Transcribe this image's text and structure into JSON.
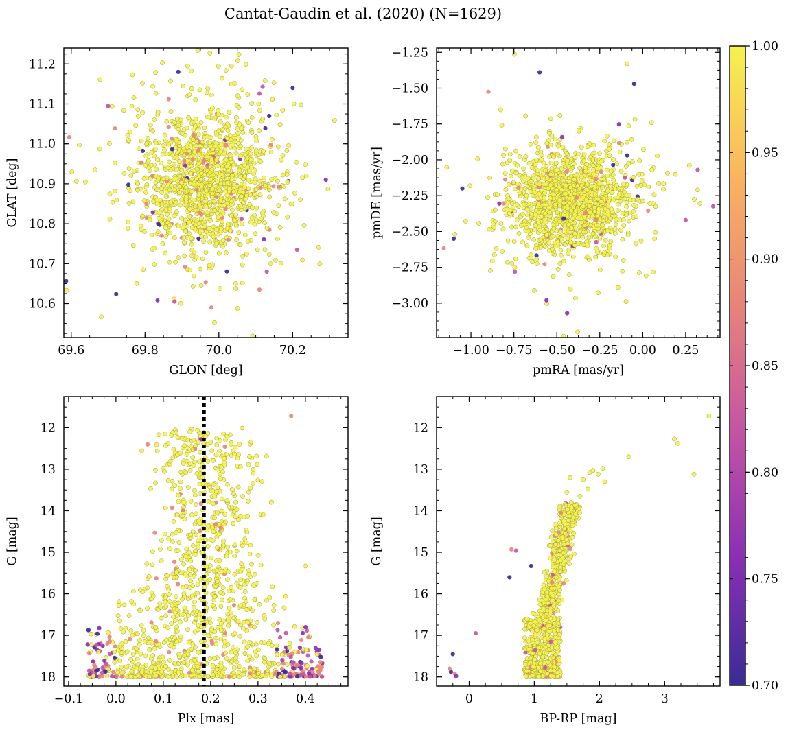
{
  "figure": {
    "title": "Cantat-Gaudin et al. (2020) (N=1629)"
  },
  "colorbar": {
    "colormap": "plasma",
    "range": [
      0.7,
      1.0
    ],
    "ticks": [
      "0.70",
      "0.75",
      "0.80",
      "0.85",
      "0.90",
      "0.95",
      "1.00"
    ],
    "colors": [
      "#3a2c94",
      "#8a2fb5",
      "#c455a4",
      "#e88578",
      "#fbb55f",
      "#f5f24e"
    ]
  },
  "chart_data": [
    {
      "type": "scatter",
      "id": "sky",
      "title": "",
      "xlabel": "GLON [deg]",
      "ylabel": "GLAT [deg]",
      "xlim": [
        69.58,
        70.35
      ],
      "ylim": [
        10.515,
        11.24
      ],
      "xticks": [
        69.6,
        69.8,
        70.0,
        70.2
      ],
      "xticklabels": [
        "69.6",
        "69.8",
        "70.0",
        "70.2"
      ],
      "yticks": [
        10.6,
        10.7,
        10.8,
        10.9,
        11.0,
        11.1,
        11.2
      ],
      "yticklabels": [
        "10.6",
        "10.7",
        "10.8",
        "10.9",
        "11.0",
        "11.1",
        "11.2"
      ],
      "center": [
        69.96,
        10.91
      ],
      "spread": [
        0.085,
        0.085
      ],
      "n_members": 1629,
      "outliers": [
        [
          69.7,
          11.095
        ],
        [
          69.88,
          10.605
        ],
        [
          70.11,
          10.635
        ],
        [
          70.13,
          10.68
        ],
        [
          70.29,
          10.91
        ],
        [
          69.98,
          10.59
        ],
        [
          70.2,
          11.14
        ],
        [
          69.89,
          11.18
        ]
      ]
    },
    {
      "type": "scatter",
      "id": "proper-motion",
      "title": "",
      "xlabel": "pmRA [mas/yr]",
      "ylabel": "pmDE [mas/yr]",
      "xlim": [
        -1.2,
        0.45
      ],
      "ylim": [
        -3.24,
        -1.22
      ],
      "xticks": [
        -1.0,
        -0.75,
        -0.5,
        -0.25,
        0.0,
        0.25
      ],
      "xticklabels": [
        "−1.00",
        "−0.75",
        "−0.50",
        "−0.25",
        "0.00",
        "0.25"
      ],
      "yticks": [
        -3.0,
        -2.75,
        -2.5,
        -2.25,
        -2.0,
        -1.75,
        -1.5,
        -1.25
      ],
      "yticklabels": [
        "−3.00",
        "−2.75",
        "−2.50",
        "−2.25",
        "−2.00",
        "−1.75",
        "−1.50",
        "−1.25"
      ],
      "center": [
        -0.42,
        -2.29
      ],
      "spread": [
        0.17,
        0.17
      ],
      "n_members": 1629,
      "outliers": [
        [
          -0.6,
          -1.39
        ],
        [
          -0.05,
          -1.47
        ],
        [
          0.32,
          -2.07
        ],
        [
          -1.05,
          -2.2
        ],
        [
          -1.1,
          -2.55
        ],
        [
          -0.44,
          -3.07
        ],
        [
          -0.56,
          -2.98
        ],
        [
          0.25,
          -2.42
        ]
      ]
    },
    {
      "type": "scatter",
      "id": "parallax-magnitude",
      "title": "",
      "xlabel": "Plx [mas]",
      "ylabel": "G [mag]",
      "xlim": [
        -0.11,
        0.49
      ],
      "ylim": [
        18.22,
        11.25
      ],
      "xticks": [
        -0.1,
        0.0,
        0.1,
        0.2,
        0.3,
        0.4
      ],
      "xticklabels": [
        "−0.1",
        "0.0",
        "0.1",
        "0.2",
        "0.3",
        "0.4"
      ],
      "yticks": [
        12,
        13,
        14,
        15,
        16,
        17,
        18
      ],
      "yticklabels": [
        "12",
        "13",
        "14",
        "15",
        "16",
        "17",
        "18"
      ],
      "reference_line": {
        "style": "dotted",
        "x": 0.186
      },
      "outliers": [
        [
          0.37,
          11.72
        ],
        [
          0.18,
          12.28
        ],
        [
          0.1,
          12.97
        ],
        [
          0.29,
          13.1
        ],
        [
          0.28,
          13.55
        ],
        [
          0.4,
          15.33
        ],
        [
          0.07,
          15.58
        ]
      ]
    },
    {
      "type": "scatter",
      "id": "color-magnitude",
      "title": "",
      "xlabel": "BP-RP [mag]",
      "ylabel": "G [mag]",
      "xlim": [
        -0.5,
        3.85
      ],
      "ylim": [
        18.22,
        11.25
      ],
      "xticks": [
        0,
        1,
        2,
        3
      ],
      "xticklabels": [
        "0",
        "1",
        "2",
        "3"
      ],
      "yticks": [
        12,
        13,
        14,
        15,
        16,
        17,
        18
      ],
      "yticklabels": [
        "12",
        "13",
        "14",
        "15",
        "16",
        "17",
        "18"
      ],
      "giant_branch": [
        [
          3.68,
          11.72
        ],
        [
          3.15,
          12.27
        ],
        [
          3.2,
          12.38
        ],
        [
          2.45,
          12.7
        ],
        [
          3.45,
          13.12
        ],
        [
          2.05,
          12.98
        ],
        [
          1.9,
          13.03
        ],
        [
          1.85,
          13.08
        ],
        [
          1.98,
          13.12
        ],
        [
          2.08,
          13.3
        ],
        [
          1.75,
          13.25
        ],
        [
          1.82,
          13.48
        ],
        [
          1.55,
          13.2
        ],
        [
          1.7,
          13.65
        ],
        [
          1.5,
          13.55
        ]
      ],
      "outliers": [
        [
          -0.25,
          17.45
        ],
        [
          -0.28,
          17.88
        ],
        [
          -0.22,
          17.92
        ],
        [
          -0.2,
          17.98
        ],
        [
          0.1,
          16.95
        ],
        [
          0.62,
          15.6
        ],
        [
          0.65,
          14.93
        ],
        [
          0.72,
          14.96
        ],
        [
          0.95,
          15.33
        ],
        [
          -0.3,
          17.8
        ]
      ]
    }
  ]
}
